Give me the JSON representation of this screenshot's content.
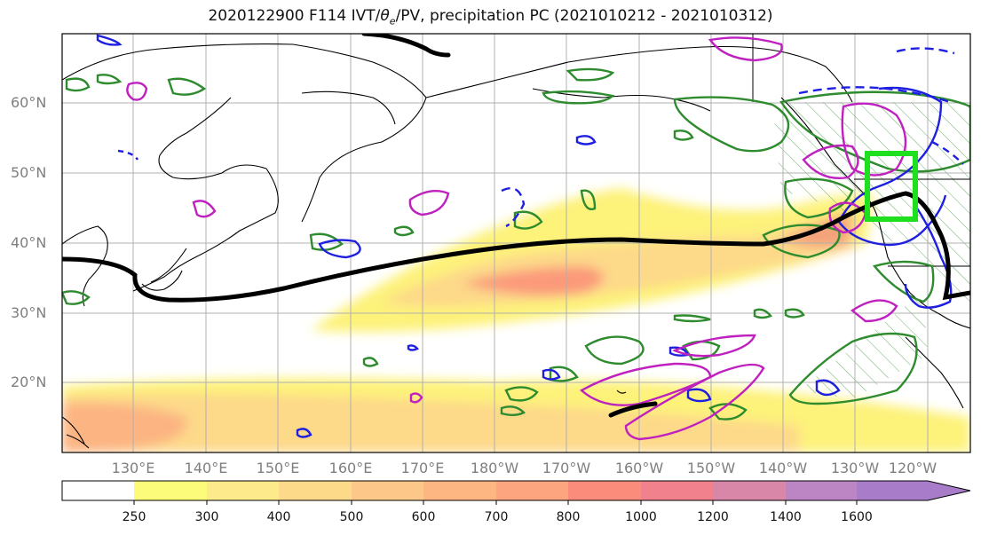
{
  "title": {
    "prefix": "2020122900 F114 IVT/",
    "theta": "θ",
    "sub": "e",
    "suffix": "/PV, precipitation PC (2021010212 - 2021010312)"
  },
  "lat_labels": [
    "60°N",
    "50°N",
    "40°N",
    "30°N",
    "20°N"
  ],
  "lon_labels": [
    "130°E",
    "140°E",
    "150°E",
    "160°E",
    "170°E",
    "180°W",
    "170°W",
    "160°W",
    "150°W",
    "140°W",
    "130°W",
    "120°W"
  ],
  "colorbar": {
    "ticks": [
      "250",
      "300",
      "400",
      "500",
      "600",
      "700",
      "800",
      "1000",
      "1200",
      "1400",
      "1600"
    ],
    "colors": [
      "#ffffff",
      "#fdfb7a",
      "#fdea8a",
      "#fdd98a",
      "#fdc78a",
      "#fdb582",
      "#fca57e",
      "#fb8b7a",
      "#f2818e",
      "#d987a8",
      "#bb86c3",
      "#a87cc9"
    ]
  },
  "colors": {
    "green_contour": "#2e8b2e",
    "blue_contour": "#1f1fe0",
    "magenta_contour": "#c020c0",
    "ivt_line": "#000000",
    "box": "#1ee01e"
  }
}
